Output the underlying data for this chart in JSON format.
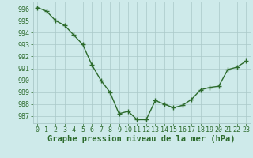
{
  "x": [
    0,
    1,
    2,
    3,
    4,
    5,
    6,
    7,
    8,
    9,
    10,
    11,
    12,
    13,
    14,
    15,
    16,
    17,
    18,
    19,
    20,
    21,
    22,
    23
  ],
  "y": [
    996.1,
    995.8,
    995.0,
    994.6,
    993.8,
    993.0,
    991.3,
    990.0,
    989.0,
    987.2,
    987.4,
    986.7,
    986.7,
    988.3,
    988.0,
    987.7,
    987.9,
    988.4,
    989.2,
    989.4,
    989.5,
    990.9,
    991.1,
    991.6
  ],
  "ylim": [
    986.4,
    996.6
  ],
  "yticks": [
    987,
    988,
    989,
    990,
    991,
    992,
    993,
    994,
    995,
    996
  ],
  "xticks": [
    0,
    1,
    2,
    3,
    4,
    5,
    6,
    7,
    8,
    9,
    10,
    11,
    12,
    13,
    14,
    15,
    16,
    17,
    18,
    19,
    20,
    21,
    22,
    23
  ],
  "xlabel": "Graphe pression niveau de la mer (hPa)",
  "line_color": "#2d6b2d",
  "marker_color": "#2d6b2d",
  "bg_color": "#ceeaea",
  "grid_color": "#aac8c8",
  "tick_label_color": "#2d6b2d",
  "xlabel_color": "#2d6b2d",
  "xlabel_fontsize": 7.5,
  "tick_fontsize": 6.0,
  "line_width": 1.0,
  "marker_size": 2.2
}
